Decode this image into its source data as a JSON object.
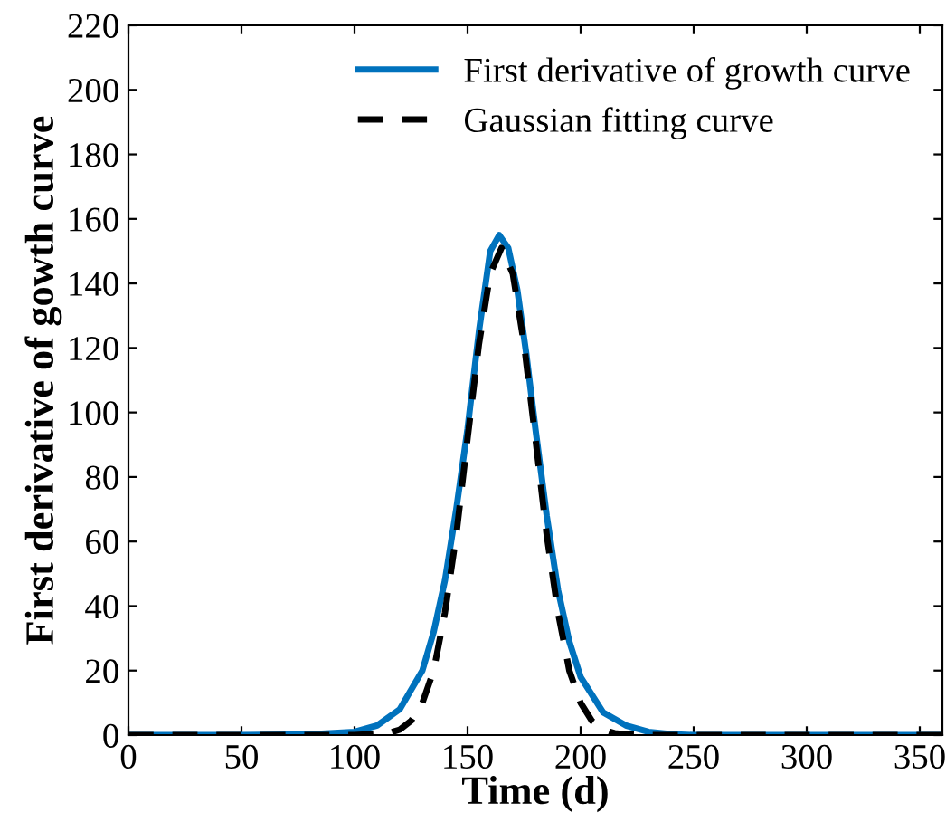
{
  "chart_data": {
    "type": "line",
    "xlabel": "Time (d)",
    "ylabel": "First derivative of gowth curve",
    "xlim": [
      0,
      360
    ],
    "ylim": [
      0,
      220
    ],
    "xticks": [
      0,
      50,
      100,
      150,
      200,
      250,
      300,
      350
    ],
    "yticks": [
      0,
      20,
      40,
      60,
      80,
      100,
      120,
      140,
      160,
      180,
      200,
      220
    ],
    "grid": false,
    "legend": "top right",
    "series": [
      {
        "name": "First derivative of growth curve",
        "color": "#0072bd",
        "line_style": "solid",
        "x": [
          0,
          50,
          80,
          100,
          110,
          120,
          130,
          135,
          140,
          145,
          150,
          155,
          160,
          164,
          168,
          172,
          176,
          180,
          185,
          190,
          195,
          200,
          210,
          220,
          230,
          240,
          250,
          300,
          360
        ],
        "values": [
          0,
          0,
          0.2,
          1,
          3,
          8,
          20,
          32,
          48,
          70,
          95,
          125,
          150,
          155,
          151,
          138,
          118,
          95,
          68,
          45,
          29,
          18,
          7,
          3,
          1,
          0.3,
          0,
          0,
          0
        ]
      },
      {
        "name": "Gaussian fitting curve",
        "color": "#000000",
        "line_style": "dashed",
        "x": [
          0,
          100,
          115,
          120,
          125,
          130,
          135,
          140,
          145,
          150,
          155,
          160,
          165,
          170,
          175,
          180,
          185,
          190,
          195,
          200,
          205,
          210,
          215,
          220,
          230,
          250,
          300,
          360
        ],
        "values": [
          0,
          0,
          0.6,
          1.7,
          4.4,
          10,
          20,
          38,
          62,
          92,
          121,
          143,
          151,
          143,
          121,
          92,
          62,
          38,
          20,
          10,
          4.4,
          1.7,
          0.6,
          0.2,
          0,
          0,
          0,
          0
        ]
      }
    ]
  }
}
